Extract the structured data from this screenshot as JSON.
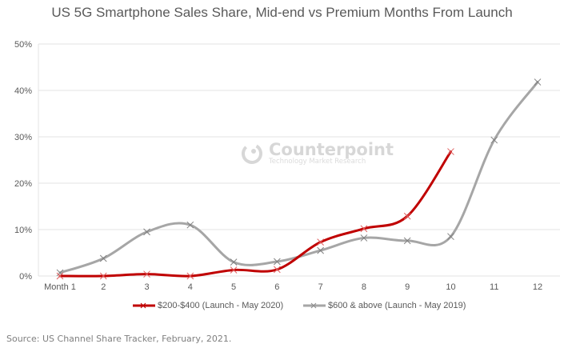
{
  "chart_data": {
    "type": "line",
    "title": "US 5G Smartphone Sales Share, Mid-end vs Premium Months From Launch",
    "xlabel": "",
    "ylabel": "",
    "categories": [
      "Month 1",
      "2",
      "3",
      "4",
      "5",
      "6",
      "7",
      "8",
      "9",
      "10",
      "11",
      "12"
    ],
    "ylim": [
      0,
      50
    ],
    "yticks": [
      0,
      10,
      20,
      30,
      40,
      50
    ],
    "ytick_labels": [
      "0%",
      "10%",
      "20%",
      "30%",
      "40%",
      "50%"
    ],
    "grid": true,
    "smooth": true,
    "legend_position": "bottom",
    "series": [
      {
        "name": "$200-$400 (Launch - May 2020)",
        "color": "#c00000",
        "marker": "x",
        "values": [
          0.0,
          0.0,
          0.4,
          0.0,
          1.3,
          1.4,
          7.3,
          10.2,
          12.9,
          26.8,
          null,
          null
        ]
      },
      {
        "name": "$600 & above (Launch - May 2019)",
        "color": "#a6a6a6",
        "marker": "x",
        "values": [
          0.7,
          3.8,
          9.5,
          11.0,
          3.0,
          3.1,
          5.5,
          8.2,
          7.6,
          8.5,
          29.3,
          41.8
        ]
      }
    ]
  },
  "watermark": {
    "brand": "Counterpoint",
    "subtitle": "Technology Market Research",
    "icon": "counterpoint-logo-icon"
  },
  "source": "Source: US Channel Share Tracker, February, 2021."
}
